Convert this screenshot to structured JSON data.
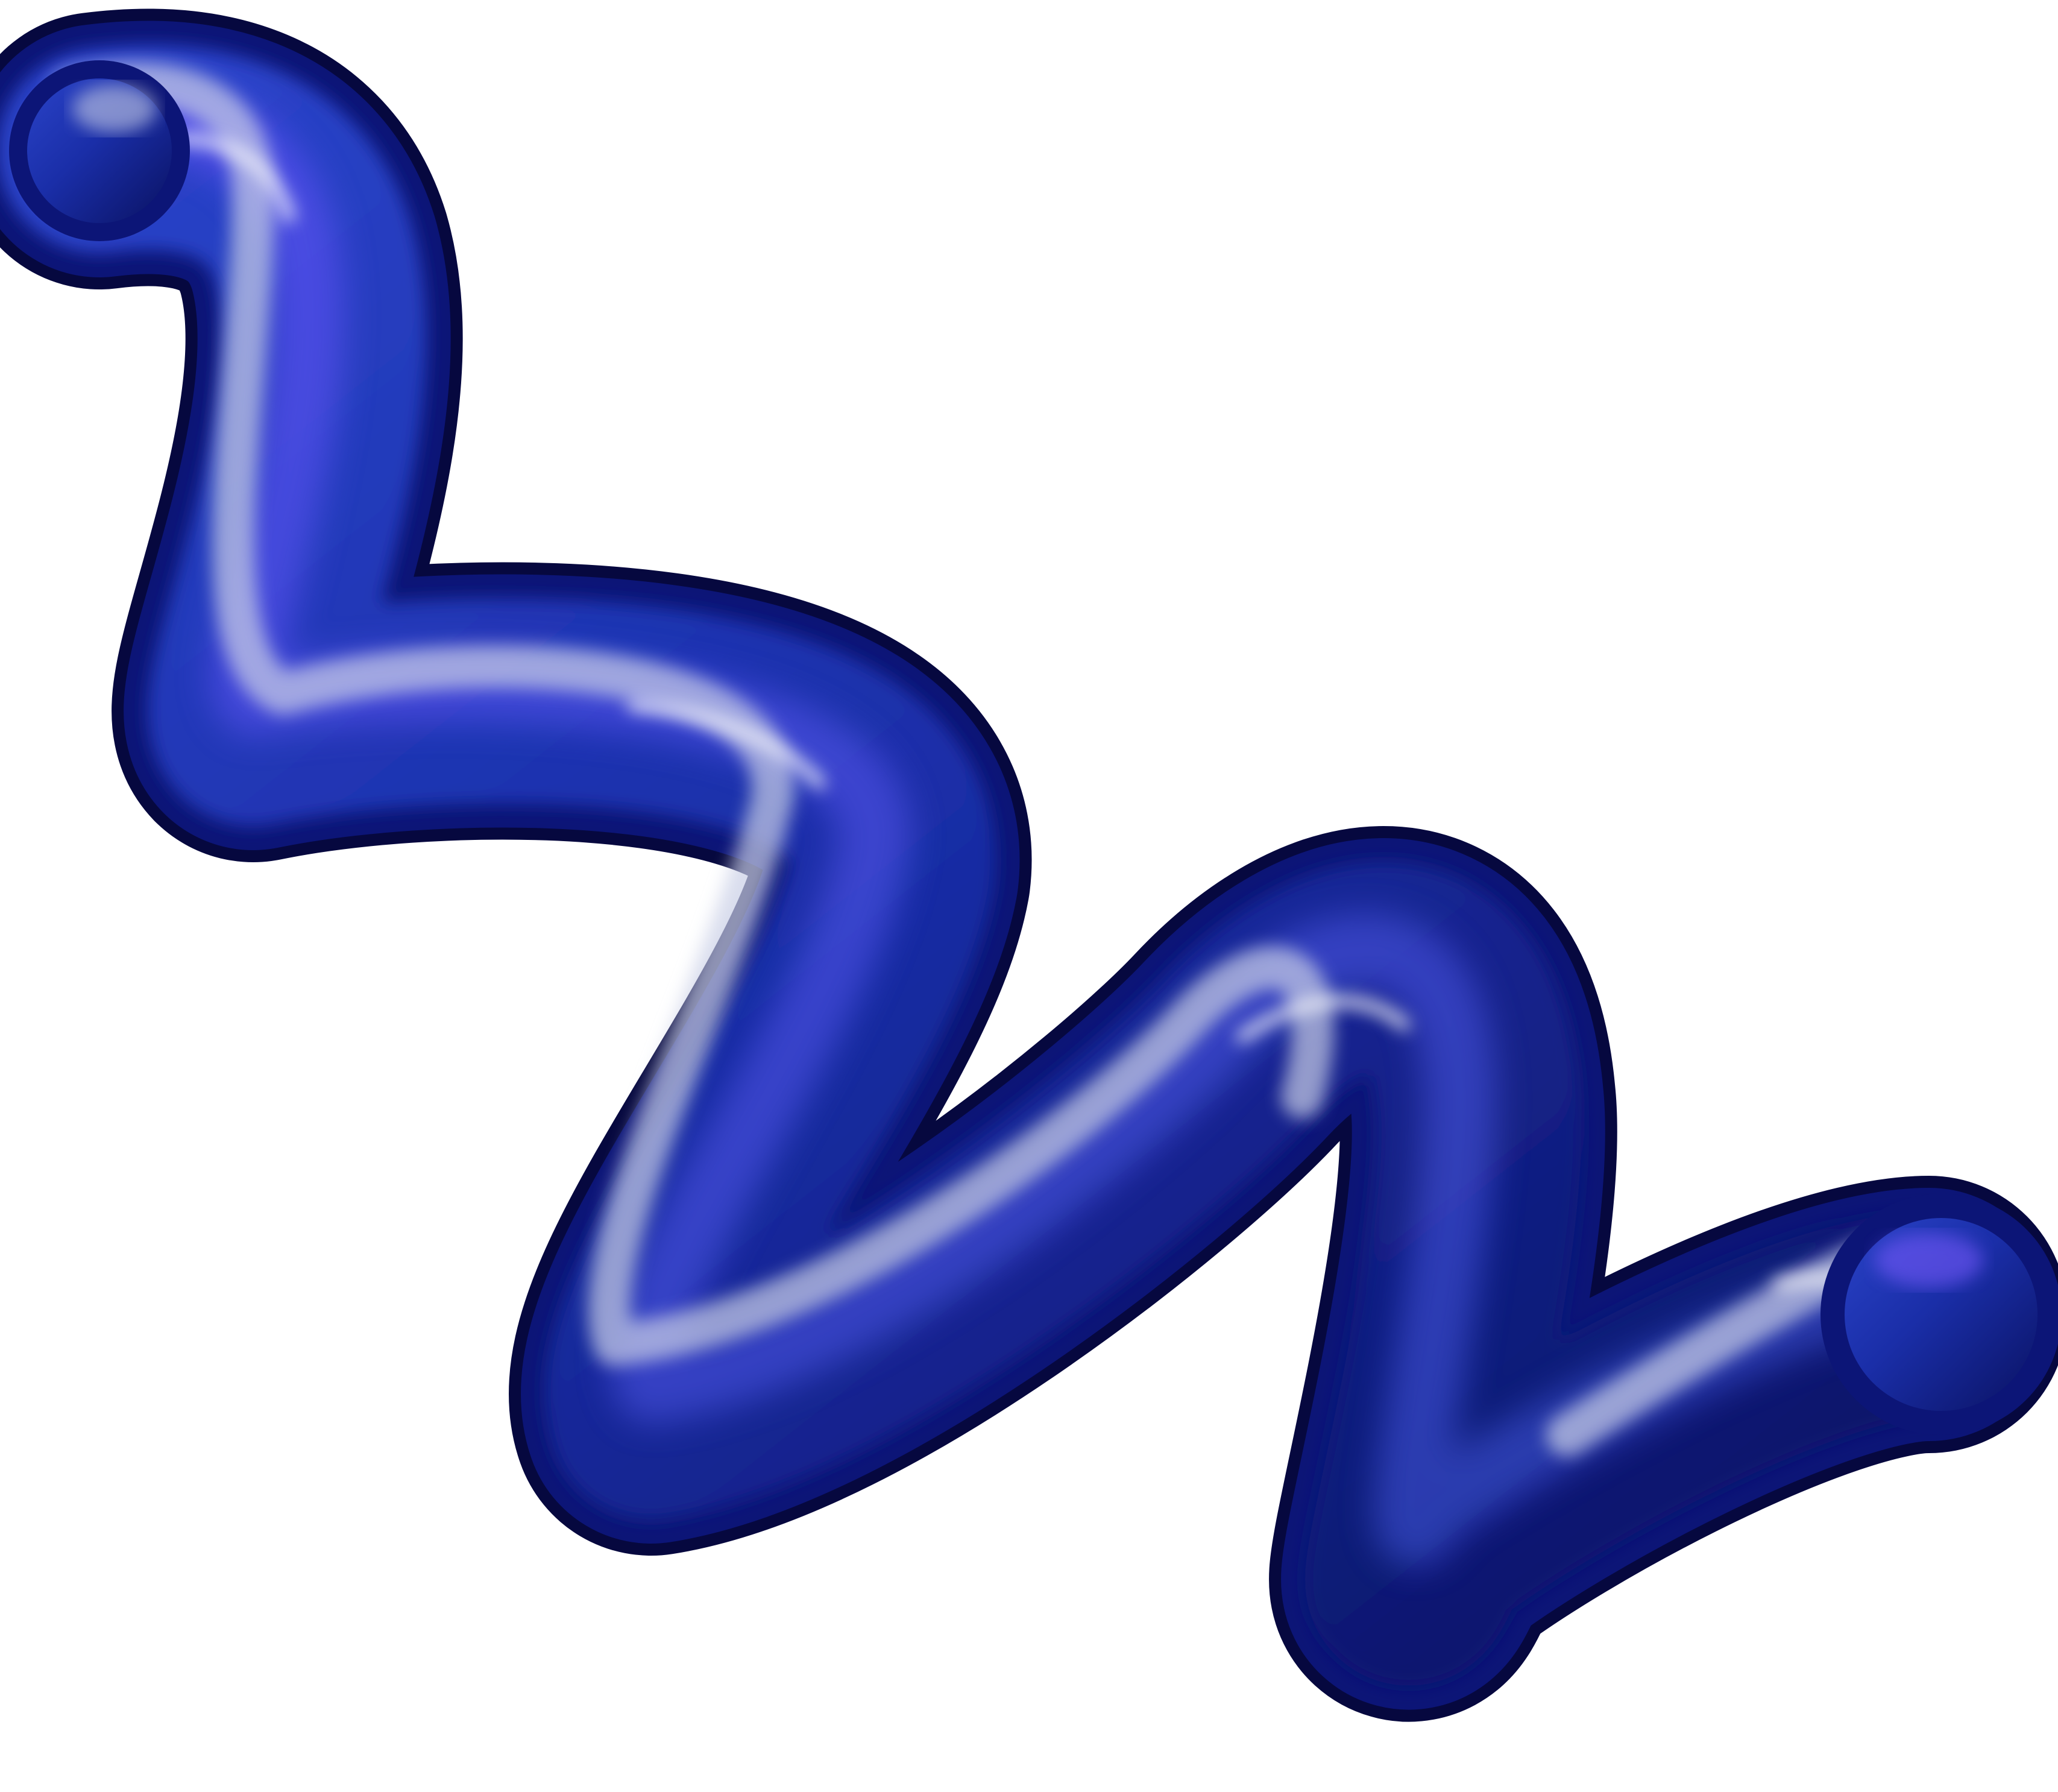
{
  "scene": {
    "subject": "squiggle-tube",
    "background_color": "#ffffff",
    "colors": {
      "deep": "#06083f",
      "dark": "#0c1577",
      "mid": "#1f34b8",
      "bright": "#3d57d8",
      "violet": "#7b5cff",
      "highlight": "#c9cfe6",
      "shine": "#ffffff"
    }
  }
}
